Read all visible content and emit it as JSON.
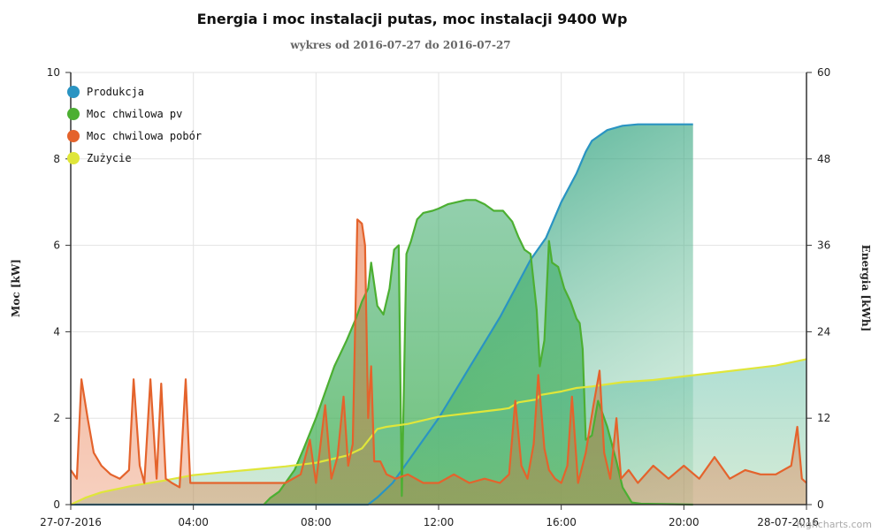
{
  "chart_data": {
    "type": "line",
    "title": "Energia i moc instalacji putas, moc instalacji 9400 Wp",
    "subtitle": "wykres od 2016-07-27 do 2016-07-27",
    "ylabel_left": "Moc [kW]",
    "ylabel_right": "Energia [kWh]",
    "ylim_left": [
      0,
      10
    ],
    "ylim_right": [
      0,
      60
    ],
    "xlim_hours": [
      0,
      24
    ],
    "x_ticks": [
      {
        "h": 0,
        "label": "27-07-2016"
      },
      {
        "h": 4,
        "label": "04:00"
      },
      {
        "h": 8,
        "label": "08:00"
      },
      {
        "h": 12,
        "label": "12:00"
      },
      {
        "h": 16,
        "label": "16:00"
      },
      {
        "h": 20,
        "label": "20:00"
      },
      {
        "h": 24,
        "label": "28-07-2016"
      }
    ],
    "y_left_ticks": [
      0,
      2,
      4,
      6,
      8,
      10
    ],
    "y_right_ticks": [
      0,
      12,
      24,
      36,
      48,
      60
    ],
    "grid": true,
    "legend_position": "top-left",
    "credit": "highcharts.com",
    "series": [
      {
        "name": "Produkcja",
        "axis": "right",
        "color": "#2a94c2",
        "points": [
          [
            0,
            0
          ],
          [
            9.7,
            0
          ],
          [
            10,
            1
          ],
          [
            10.5,
            3
          ],
          [
            11,
            6
          ],
          [
            12,
            12
          ],
          [
            13,
            19
          ],
          [
            14,
            26
          ],
          [
            14.5,
            30
          ],
          [
            15,
            34
          ],
          [
            15.5,
            37
          ],
          [
            16,
            42
          ],
          [
            16.5,
            46
          ],
          [
            16.8,
            49
          ],
          [
            17,
            50.5
          ],
          [
            17.5,
            52
          ],
          [
            18,
            52.6
          ],
          [
            18.5,
            52.8
          ],
          [
            19,
            52.8
          ],
          [
            20.3,
            52.8
          ]
        ]
      },
      {
        "name": "Moc chwilowa pv",
        "axis": "left",
        "color": "#4caf32",
        "points": [
          [
            6.3,
            0
          ],
          [
            6.5,
            0.15
          ],
          [
            6.8,
            0.3
          ],
          [
            7,
            0.5
          ],
          [
            7.3,
            0.8
          ],
          [
            7.6,
            1.3
          ],
          [
            8,
            2.0
          ],
          [
            8.3,
            2.6
          ],
          [
            8.6,
            3.2
          ],
          [
            9,
            3.8
          ],
          [
            9.3,
            4.3
          ],
          [
            9.5,
            4.7
          ],
          [
            9.7,
            5.0
          ],
          [
            9.8,
            5.6
          ],
          [
            10,
            4.6
          ],
          [
            10.2,
            4.4
          ],
          [
            10.4,
            5.0
          ],
          [
            10.55,
            5.9
          ],
          [
            10.7,
            6.0
          ],
          [
            10.8,
            0.2
          ],
          [
            10.95,
            5.8
          ],
          [
            11.1,
            6.1
          ],
          [
            11.3,
            6.6
          ],
          [
            11.5,
            6.75
          ],
          [
            11.8,
            6.8
          ],
          [
            12,
            6.85
          ],
          [
            12.3,
            6.95
          ],
          [
            12.6,
            7.0
          ],
          [
            12.9,
            7.05
          ],
          [
            13.2,
            7.05
          ],
          [
            13.5,
            6.95
          ],
          [
            13.8,
            6.8
          ],
          [
            14.1,
            6.8
          ],
          [
            14.4,
            6.55
          ],
          [
            14.6,
            6.2
          ],
          [
            14.8,
            5.9
          ],
          [
            15,
            5.8
          ],
          [
            15.2,
            4.5
          ],
          [
            15.3,
            3.2
          ],
          [
            15.45,
            3.8
          ],
          [
            15.6,
            6.1
          ],
          [
            15.7,
            5.6
          ],
          [
            15.9,
            5.5
          ],
          [
            16.1,
            5.0
          ],
          [
            16.3,
            4.7
          ],
          [
            16.5,
            4.3
          ],
          [
            16.6,
            4.2
          ],
          [
            16.7,
            3.6
          ],
          [
            16.8,
            1.5
          ],
          [
            17,
            1.6
          ],
          [
            17.2,
            2.4
          ],
          [
            17.5,
            1.8
          ],
          [
            17.8,
            1.0
          ],
          [
            18,
            0.4
          ],
          [
            18.3,
            0.05
          ],
          [
            18.6,
            0.02
          ],
          [
            20.3,
            0
          ]
        ]
      },
      {
        "name": "Moc chwilowa pobór",
        "axis": "left",
        "color": "#e4632c",
        "points": [
          [
            0,
            0.8
          ],
          [
            0.2,
            0.6
          ],
          [
            0.35,
            2.9
          ],
          [
            0.55,
            2.0
          ],
          [
            0.75,
            1.2
          ],
          [
            1.0,
            0.9
          ],
          [
            1.3,
            0.7
          ],
          [
            1.6,
            0.6
          ],
          [
            1.9,
            0.8
          ],
          [
            2.05,
            2.9
          ],
          [
            2.25,
            0.9
          ],
          [
            2.4,
            0.5
          ],
          [
            2.6,
            2.9
          ],
          [
            2.8,
            0.6
          ],
          [
            2.95,
            2.8
          ],
          [
            3.1,
            0.6
          ],
          [
            3.3,
            0.5
          ],
          [
            3.55,
            0.4
          ],
          [
            3.75,
            2.9
          ],
          [
            3.9,
            0.5
          ],
          [
            4.2,
            0.5
          ],
          [
            5,
            0.5
          ],
          [
            6,
            0.5
          ],
          [
            7,
            0.5
          ],
          [
            7.5,
            0.7
          ],
          [
            7.8,
            1.5
          ],
          [
            8.0,
            0.5
          ],
          [
            8.3,
            2.3
          ],
          [
            8.5,
            0.6
          ],
          [
            8.7,
            1.1
          ],
          [
            8.9,
            2.5
          ],
          [
            9.05,
            0.9
          ],
          [
            9.2,
            1.4
          ],
          [
            9.35,
            6.6
          ],
          [
            9.5,
            6.5
          ],
          [
            9.6,
            6.0
          ],
          [
            9.7,
            2.0
          ],
          [
            9.8,
            3.2
          ],
          [
            9.9,
            1.0
          ],
          [
            10.1,
            1.0
          ],
          [
            10.3,
            0.7
          ],
          [
            10.6,
            0.6
          ],
          [
            11,
            0.7
          ],
          [
            11.5,
            0.5
          ],
          [
            12,
            0.5
          ],
          [
            12.5,
            0.7
          ],
          [
            13,
            0.5
          ],
          [
            13.5,
            0.6
          ],
          [
            14,
            0.5
          ],
          [
            14.3,
            0.7
          ],
          [
            14.5,
            2.4
          ],
          [
            14.7,
            0.9
          ],
          [
            14.9,
            0.6
          ],
          [
            15.1,
            1.4
          ],
          [
            15.25,
            3.0
          ],
          [
            15.45,
            1.3
          ],
          [
            15.6,
            0.8
          ],
          [
            15.8,
            0.6
          ],
          [
            16,
            0.5
          ],
          [
            16.2,
            0.9
          ],
          [
            16.35,
            2.5
          ],
          [
            16.55,
            0.5
          ],
          [
            16.8,
            1.2
          ],
          [
            17.05,
            2.3
          ],
          [
            17.25,
            3.1
          ],
          [
            17.4,
            1.2
          ],
          [
            17.6,
            0.6
          ],
          [
            17.8,
            2.0
          ],
          [
            17.95,
            0.6
          ],
          [
            18.2,
            0.8
          ],
          [
            18.5,
            0.5
          ],
          [
            19,
            0.9
          ],
          [
            19.5,
            0.6
          ],
          [
            20,
            0.9
          ],
          [
            20.5,
            0.6
          ],
          [
            21,
            1.1
          ],
          [
            21.5,
            0.6
          ],
          [
            22,
            0.8
          ],
          [
            22.5,
            0.7
          ],
          [
            23,
            0.7
          ],
          [
            23.5,
            0.9
          ],
          [
            23.7,
            1.8
          ],
          [
            23.85,
            0.6
          ],
          [
            24,
            0.5
          ]
        ]
      },
      {
        "name": "Zużycie",
        "axis": "right",
        "color": "#dfe63a",
        "points": [
          [
            0,
            0
          ],
          [
            0.5,
            1
          ],
          [
            1,
            1.7
          ],
          [
            2,
            2.6
          ],
          [
            3,
            3.3
          ],
          [
            4,
            4.1
          ],
          [
            5,
            4.5
          ],
          [
            6,
            4.9
          ],
          [
            7,
            5.3
          ],
          [
            8,
            5.8
          ],
          [
            9,
            6.8
          ],
          [
            9.5,
            7.8
          ],
          [
            10,
            10.5
          ],
          [
            10.3,
            10.8
          ],
          [
            11,
            11.2
          ],
          [
            12,
            12.2
          ],
          [
            13,
            12.7
          ],
          [
            14,
            13.2
          ],
          [
            14.3,
            13.4
          ],
          [
            14.6,
            14.2
          ],
          [
            15.2,
            14.6
          ],
          [
            15.3,
            15.2
          ],
          [
            16,
            15.7
          ],
          [
            16.5,
            16.2
          ],
          [
            17,
            16.4
          ],
          [
            17.5,
            16.7
          ],
          [
            18,
            17.0
          ],
          [
            19,
            17.3
          ],
          [
            20,
            17.8
          ],
          [
            21,
            18.3
          ],
          [
            22,
            18.8
          ],
          [
            23,
            19.3
          ],
          [
            24,
            20.2
          ]
        ]
      }
    ]
  }
}
